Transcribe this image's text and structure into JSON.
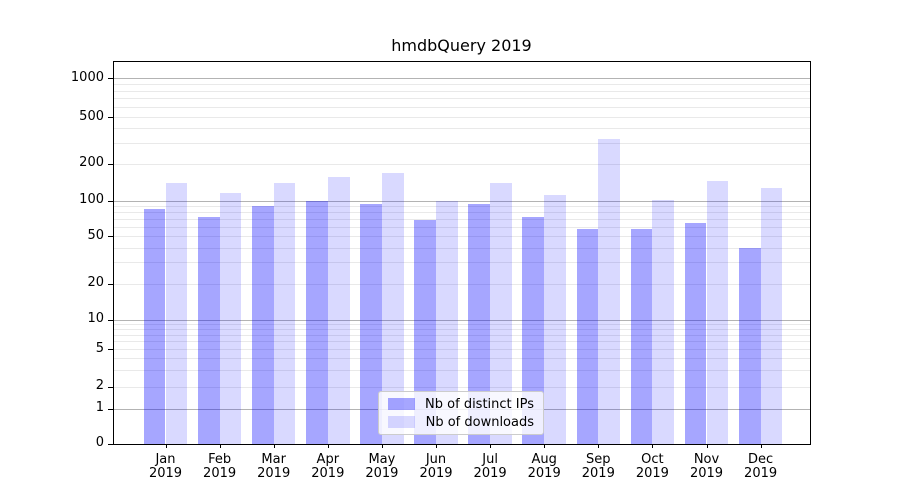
{
  "title": "hmdbQuery 2019",
  "colors": {
    "bar_distinct_ips": "rgba(0,0,255,0.35)",
    "bar_downloads": "rgba(0,0,255,0.15)",
    "grid_major": "#b3b3b3",
    "grid_minor": "#e9e9e9",
    "axis": "#000000",
    "legend_border": "#cccccc"
  },
  "legend": {
    "items": [
      {
        "label": "Nb of distinct IPs"
      },
      {
        "label": "Nb of downloads"
      }
    ]
  },
  "axes": {
    "y_ticks": [
      {
        "value": 1000,
        "label": "1000"
      },
      {
        "value": 500,
        "label": "500"
      },
      {
        "value": 200,
        "label": "200"
      },
      {
        "value": 100,
        "label": "100"
      },
      {
        "value": 50,
        "label": "50"
      },
      {
        "value": 20,
        "label": "20"
      },
      {
        "value": 10,
        "label": "10"
      },
      {
        "value": 5,
        "label": "5"
      },
      {
        "value": 2,
        "label": "2"
      },
      {
        "value": 1,
        "label": "1"
      },
      {
        "value": 0,
        "label": "0"
      }
    ],
    "x_ticks": [
      {
        "month": "Jan",
        "year": "2019"
      },
      {
        "month": "Feb",
        "year": "2019"
      },
      {
        "month": "Mar",
        "year": "2019"
      },
      {
        "month": "Apr",
        "year": "2019"
      },
      {
        "month": "May",
        "year": "2019"
      },
      {
        "month": "Jun",
        "year": "2019"
      },
      {
        "month": "Jul",
        "year": "2019"
      },
      {
        "month": "Aug",
        "year": "2019"
      },
      {
        "month": "Sep",
        "year": "2019"
      },
      {
        "month": "Oct",
        "year": "2019"
      },
      {
        "month": "Nov",
        "year": "2019"
      },
      {
        "month": "Dec",
        "year": "2019"
      }
    ]
  },
  "chart_data": {
    "type": "bar",
    "title": "hmdbQuery 2019",
    "categories": [
      "Jan 2019",
      "Feb 2019",
      "Mar 2019",
      "Apr 2019",
      "May 2019",
      "Jun 2019",
      "Jul 2019",
      "Aug 2019",
      "Sep 2019",
      "Oct 2019",
      "Nov 2019",
      "Dec 2019"
    ],
    "series": [
      {
        "name": "Nb of distinct IPs",
        "values": [
          85,
          72,
          90,
          100,
          93,
          69,
          93,
          72,
          57,
          57,
          65,
          40
        ]
      },
      {
        "name": "Nb of downloads",
        "values": [
          139,
          116,
          139,
          156,
          167,
          100,
          140,
          110,
          322,
          101,
          144,
          126
        ]
      }
    ],
    "yscale": "symlog (linear 0-1, log above 1)",
    "y_tick_values": [
      0,
      1,
      2,
      5,
      10,
      20,
      50,
      100,
      200,
      500,
      1000
    ],
    "ylim": [
      0,
      1400
    ],
    "grid": true,
    "legend_position": "lower center inside plot"
  }
}
